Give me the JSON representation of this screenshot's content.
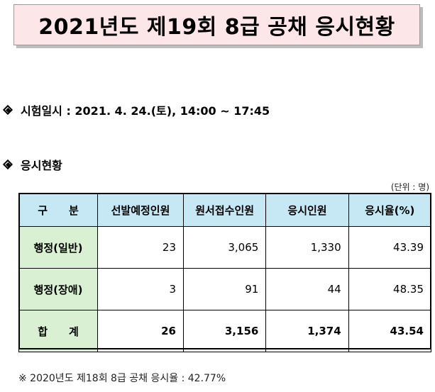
{
  "title": "2021년도 제19회 8급 공채 응시현황",
  "exam_date_line": "시험일시 : 2021. 4. 24.(토), 14:00 ~ 17:45",
  "section_heading": "응시현황",
  "unit": "(단위 : 명)",
  "table": {
    "headers": [
      "구　　분",
      "선발예정인원",
      "원서접수인원",
      "응시인원",
      "응시율(%)"
    ],
    "rows": [
      {
        "label": "행정(일반)",
        "cells": [
          "23",
          "3,065",
          "1,330",
          "43.39"
        ]
      },
      {
        "label": "행정(장애)",
        "cells": [
          "3",
          "91",
          "44",
          "48.35"
        ]
      }
    ],
    "total": {
      "label": "합　　계",
      "cells": [
        "26",
        "3,156",
        "1,374",
        "43.54"
      ]
    }
  },
  "note": "※ 2020년도 제18회 8급 공채 응시율 : 42.77%"
}
